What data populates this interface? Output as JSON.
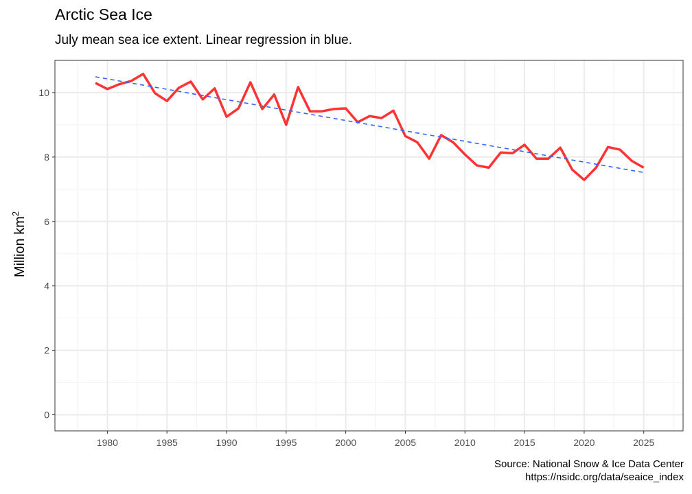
{
  "chart_data": {
    "type": "line",
    "title": "Arctic Sea Ice",
    "subtitle": "July mean sea ice extent. Linear regression in blue.",
    "xlabel": "",
    "ylabel": "Million km",
    "ylabel_superscript": "2",
    "caption_line1": "Source: National Snow & Ice Data Center",
    "caption_line2": "https://nsidc.org/data/seaice_index",
    "xlim": [
      1975.6,
      2028.3
    ],
    "ylim": [
      -0.5,
      11.0
    ],
    "x_ticks": [
      1980,
      1985,
      1990,
      1995,
      2000,
      2005,
      2010,
      2015,
      2020,
      2025
    ],
    "y_ticks": [
      0,
      2,
      4,
      6,
      8,
      10
    ],
    "grid": true,
    "series": [
      {
        "color": "#ff3333",
        "x": [
          1979,
          1980,
          1981,
          1982,
          1983,
          1984,
          1985,
          1986,
          1987,
          1988,
          1989,
          1990,
          1991,
          1992,
          1993,
          1994,
          1995,
          1996,
          1997,
          1998,
          1999,
          2000,
          2001,
          2002,
          2003,
          2004,
          2005,
          2006,
          2007,
          2008,
          2009,
          2010,
          2011,
          2012,
          2013,
          2014,
          2015,
          2016,
          2017,
          2018,
          2019,
          2020,
          2021,
          2022,
          2023,
          2024,
          2025
        ],
        "values": [
          10.3,
          10.11,
          10.26,
          10.36,
          10.58,
          9.98,
          9.74,
          10.15,
          10.34,
          9.79,
          10.13,
          9.25,
          9.51,
          10.32,
          9.49,
          9.94,
          9.0,
          10.17,
          9.42,
          9.42,
          9.49,
          9.51,
          9.08,
          9.27,
          9.21,
          9.44,
          8.65,
          8.46,
          7.95,
          8.68,
          8.46,
          8.08,
          7.74,
          7.67,
          8.14,
          8.12,
          8.38,
          7.95,
          7.95,
          8.29,
          7.61,
          7.29,
          7.67,
          8.31,
          8.23,
          7.88,
          7.67
        ]
      }
    ],
    "regression": {
      "color": "#3366ff",
      "style": "dashed",
      "x": [
        1979,
        2025
      ],
      "values": [
        10.49,
        7.52
      ]
    }
  }
}
